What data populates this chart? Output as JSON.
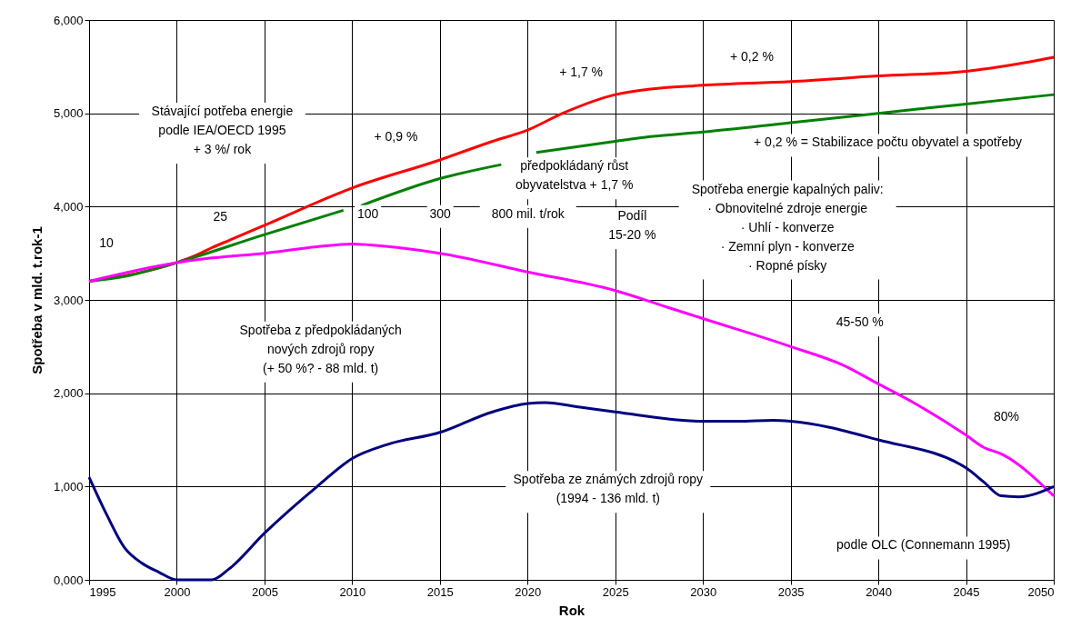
{
  "chart_data": {
    "type": "line",
    "xlabel": "Rok",
    "ylabel": "Spotřeba v mld. t.rok-1",
    "xlim": [
      1995,
      2050
    ],
    "xticks": [
      1995,
      2000,
      2005,
      2010,
      2015,
      2020,
      2025,
      2030,
      2035,
      2040,
      2045,
      2050
    ],
    "ylim": [
      0,
      6
    ],
    "yticks": [
      {
        "value": 0,
        "label": "0,000"
      },
      {
        "value": 1,
        "label": "1,000"
      },
      {
        "value": 2,
        "label": "2,000"
      },
      {
        "value": 3,
        "label": "3,000"
      },
      {
        "value": 4,
        "label": "4,000"
      },
      {
        "value": 5,
        "label": "5,000"
      },
      {
        "value": 6,
        "label": "6,000"
      }
    ],
    "grid": true,
    "marker": "none",
    "line_style": "solid",
    "series": [
      {
        "color": "#ff0000",
        "x": [
          1995,
          2000,
          2001,
          2002,
          2003,
          2005,
          2010,
          2015,
          2018,
          2020,
          2022,
          2025,
          2027,
          2030,
          2035,
          2040,
          2045,
          2047,
          2050
        ],
        "values": [
          3.2,
          3.4,
          3.47,
          3.56,
          3.64,
          3.8,
          4.2,
          4.5,
          4.7,
          4.82,
          5.0,
          5.2,
          5.26,
          5.3,
          5.34,
          5.4,
          5.45,
          5.5,
          5.6
        ]
      },
      {
        "color": "#008000",
        "x": [
          1995,
          1997,
          2000,
          2005,
          2009.5,
          2010,
          2010.5,
          2015,
          2018.5,
          2019.5,
          2020.5,
          2025,
          2027,
          2030,
          2035,
          2040,
          2045,
          2050
        ],
        "values": [
          3.2,
          3.25,
          3.4,
          3.7,
          3.96,
          null,
          4.01,
          4.3,
          4.45,
          null,
          4.58,
          4.7,
          4.75,
          4.8,
          4.9,
          5.0,
          5.1,
          5.2
        ]
      },
      {
        "color": "#ff00ff",
        "x": [
          1995,
          2000,
          2002,
          2005,
          2008,
          2010,
          2011,
          2015,
          2020,
          2025,
          2028,
          2030,
          2035,
          2038,
          2040,
          2042,
          2045,
          2046,
          2047,
          2050
        ],
        "values": [
          3.2,
          3.4,
          3.45,
          3.5,
          3.57,
          3.6,
          3.59,
          3.5,
          3.3,
          3.1,
          2.92,
          2.8,
          2.5,
          2.3,
          2.1,
          1.9,
          1.55,
          1.42,
          1.35,
          0.9
        ]
      },
      {
        "color": "#000080",
        "x": [
          1995,
          1996,
          1997,
          1998,
          1999,
          2000,
          2002,
          2003,
          2005,
          2008,
          2010,
          2012,
          2015,
          2018,
          2020,
          2021,
          2023,
          2025,
          2030,
          2032,
          2034,
          2035,
          2040,
          2045,
          2046,
          2047,
          2048,
          2050
        ],
        "values": [
          1.1,
          0.7,
          0.35,
          0.18,
          0.08,
          0,
          0,
          0.12,
          0.5,
          1.0,
          1.3,
          1.45,
          1.58,
          1.8,
          1.89,
          1.9,
          1.85,
          1.8,
          1.7,
          1.7,
          1.71,
          1.7,
          1.5,
          1.2,
          1.05,
          0.9,
          0.89,
          1.0
        ]
      }
    ],
    "annotations": [
      "10",
      "25",
      "Stávající potřeba energie\npodle IEA/OECD 1995\n+ 3 %/ rok",
      "+ 0,9 %",
      "+ 1,7 %",
      "+ 0,2 %",
      "předpokládaný růst\nobyvatelstva + 1,7 %",
      "100",
      "300",
      "800 mil. t/rok",
      "Podíl\n15-20 %",
      "+ 0,2 % = Stabilizace počtu obyvatel a spotřeby",
      "Spotřeba energie kapalných paliv:\n· Obnovitelné zdroje energie\n· Uhlí - konverze\n· Zemní plyn - konverze\n· Ropné písky",
      "Spotřeba z předpokládaných\nnových zdrojů  ropy\n(+ 50 %? - 88 mld. t)",
      "Spotřeba ze známých zdrojů ropy\n(1994 - 136 mld. t)",
      "45-50 %",
      "80%",
      "podle OLC  (Connemann 1995)"
    ]
  }
}
